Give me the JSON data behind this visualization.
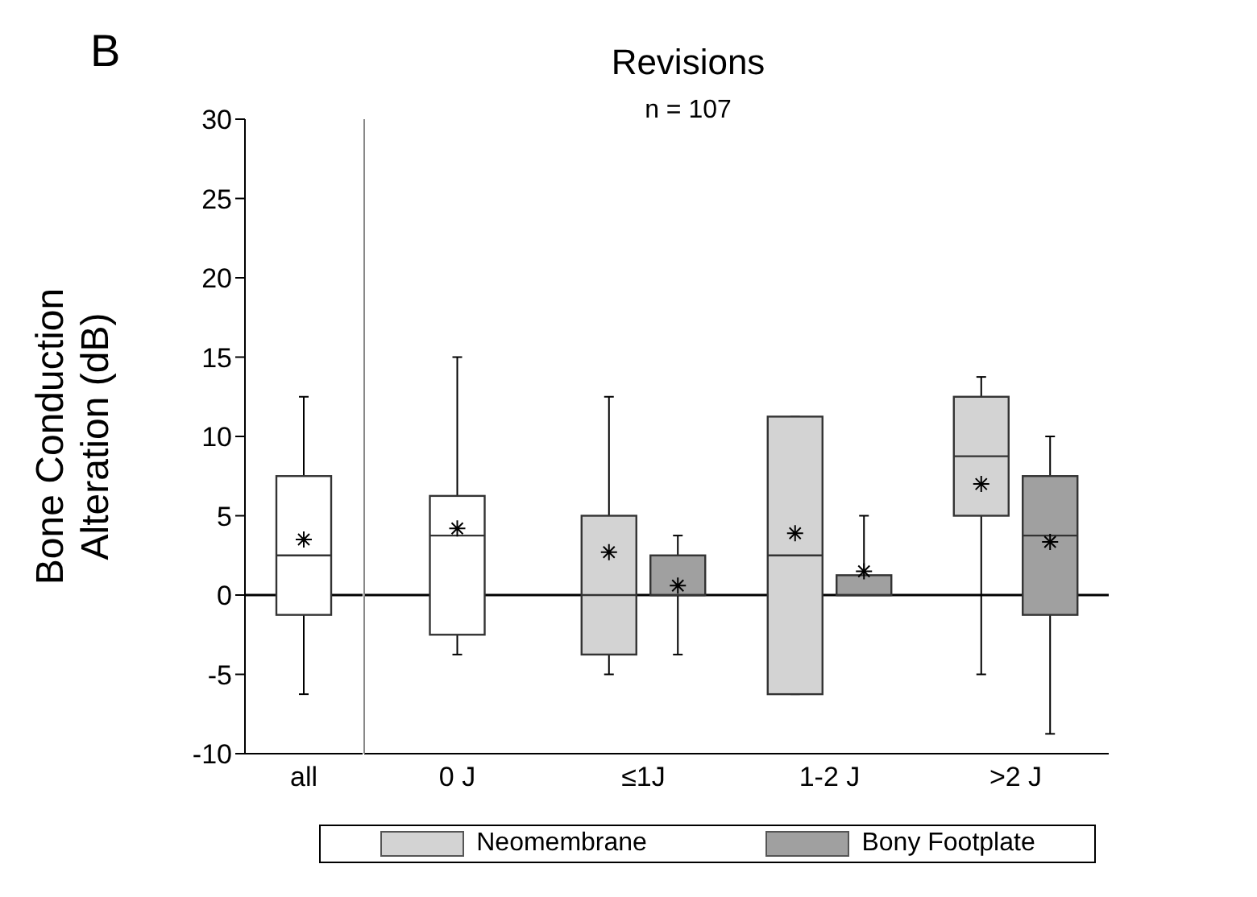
{
  "chart_data": [
    {
      "type": "box",
      "ylabel": "Bone Conduction Alteration (dB)",
      "annotations": [
        "B"
      ],
      "categories": [
        "all"
      ],
      "ylim": [
        -10,
        30
      ],
      "yticks": [
        -10,
        -5,
        0,
        5,
        10,
        15,
        20,
        25,
        30
      ],
      "grid": false,
      "ref_lines": [
        {
          "axis": "y",
          "value": 0,
          "color": "#000000"
        }
      ],
      "series": [
        {
          "color": "#ffffff",
          "boxes": [
            {
              "low": -6.25,
              "q1": -1.25,
              "median": 2.5,
              "q3": 7.5,
              "high": 12.5,
              "mean": 3.5
            }
          ]
        }
      ]
    },
    {
      "type": "box",
      "title": "Revisions",
      "annotations": [
        "n = 107"
      ],
      "categories": [
        "0 J",
        "≤1J",
        "1-2 J",
        ">2 J"
      ],
      "ylim": [
        -10,
        30
      ],
      "yticks": [
        -10,
        -5,
        0,
        5,
        10,
        15,
        20,
        25,
        30
      ],
      "tick_labels": "x",
      "grid": false,
      "legend": "bottom",
      "ref_lines": [
        {
          "axis": "y",
          "value": 0,
          "color": "#000000"
        }
      ],
      "series": [
        {
          "color": "#ffffff",
          "boxes": [
            {
              "low": -3.75,
              "q1": -2.5,
              "median": 3.75,
              "q3": 6.25,
              "high": 15,
              "mean": 4.2
            },
            null,
            null,
            null
          ]
        },
        {
          "name": "Neomembrane",
          "color": "#d3d3d3",
          "boxes": [
            null,
            {
              "low": -5,
              "q1": -3.75,
              "median": 0,
              "q3": 5,
              "high": 12.5,
              "mean": 2.7
            },
            {
              "low": -6.25,
              "q1": -6.25,
              "median": 2.5,
              "q3": 11.25,
              "high": 11.25,
              "mean": 3.9
            },
            {
              "low": -5,
              "q1": 5,
              "median": 8.75,
              "q3": 12.5,
              "high": 13.75,
              "mean": 7
            }
          ]
        },
        {
          "name": "Bony Footplate",
          "color": "#a0a0a0",
          "boxes": [
            null,
            {
              "low": -3.75,
              "q1": 0,
              "median": 0,
              "q3": 2.5,
              "high": 3.75,
              "mean": 0.6
            },
            {
              "low": 0,
              "q1": 0,
              "median": 0,
              "q3": 1.25,
              "high": 5,
              "mean": 1.5
            },
            {
              "low": -8.75,
              "q1": -1.25,
              "median": 3.75,
              "q3": 7.5,
              "high": 10,
              "mean": 3.35
            }
          ]
        }
      ]
    }
  ]
}
